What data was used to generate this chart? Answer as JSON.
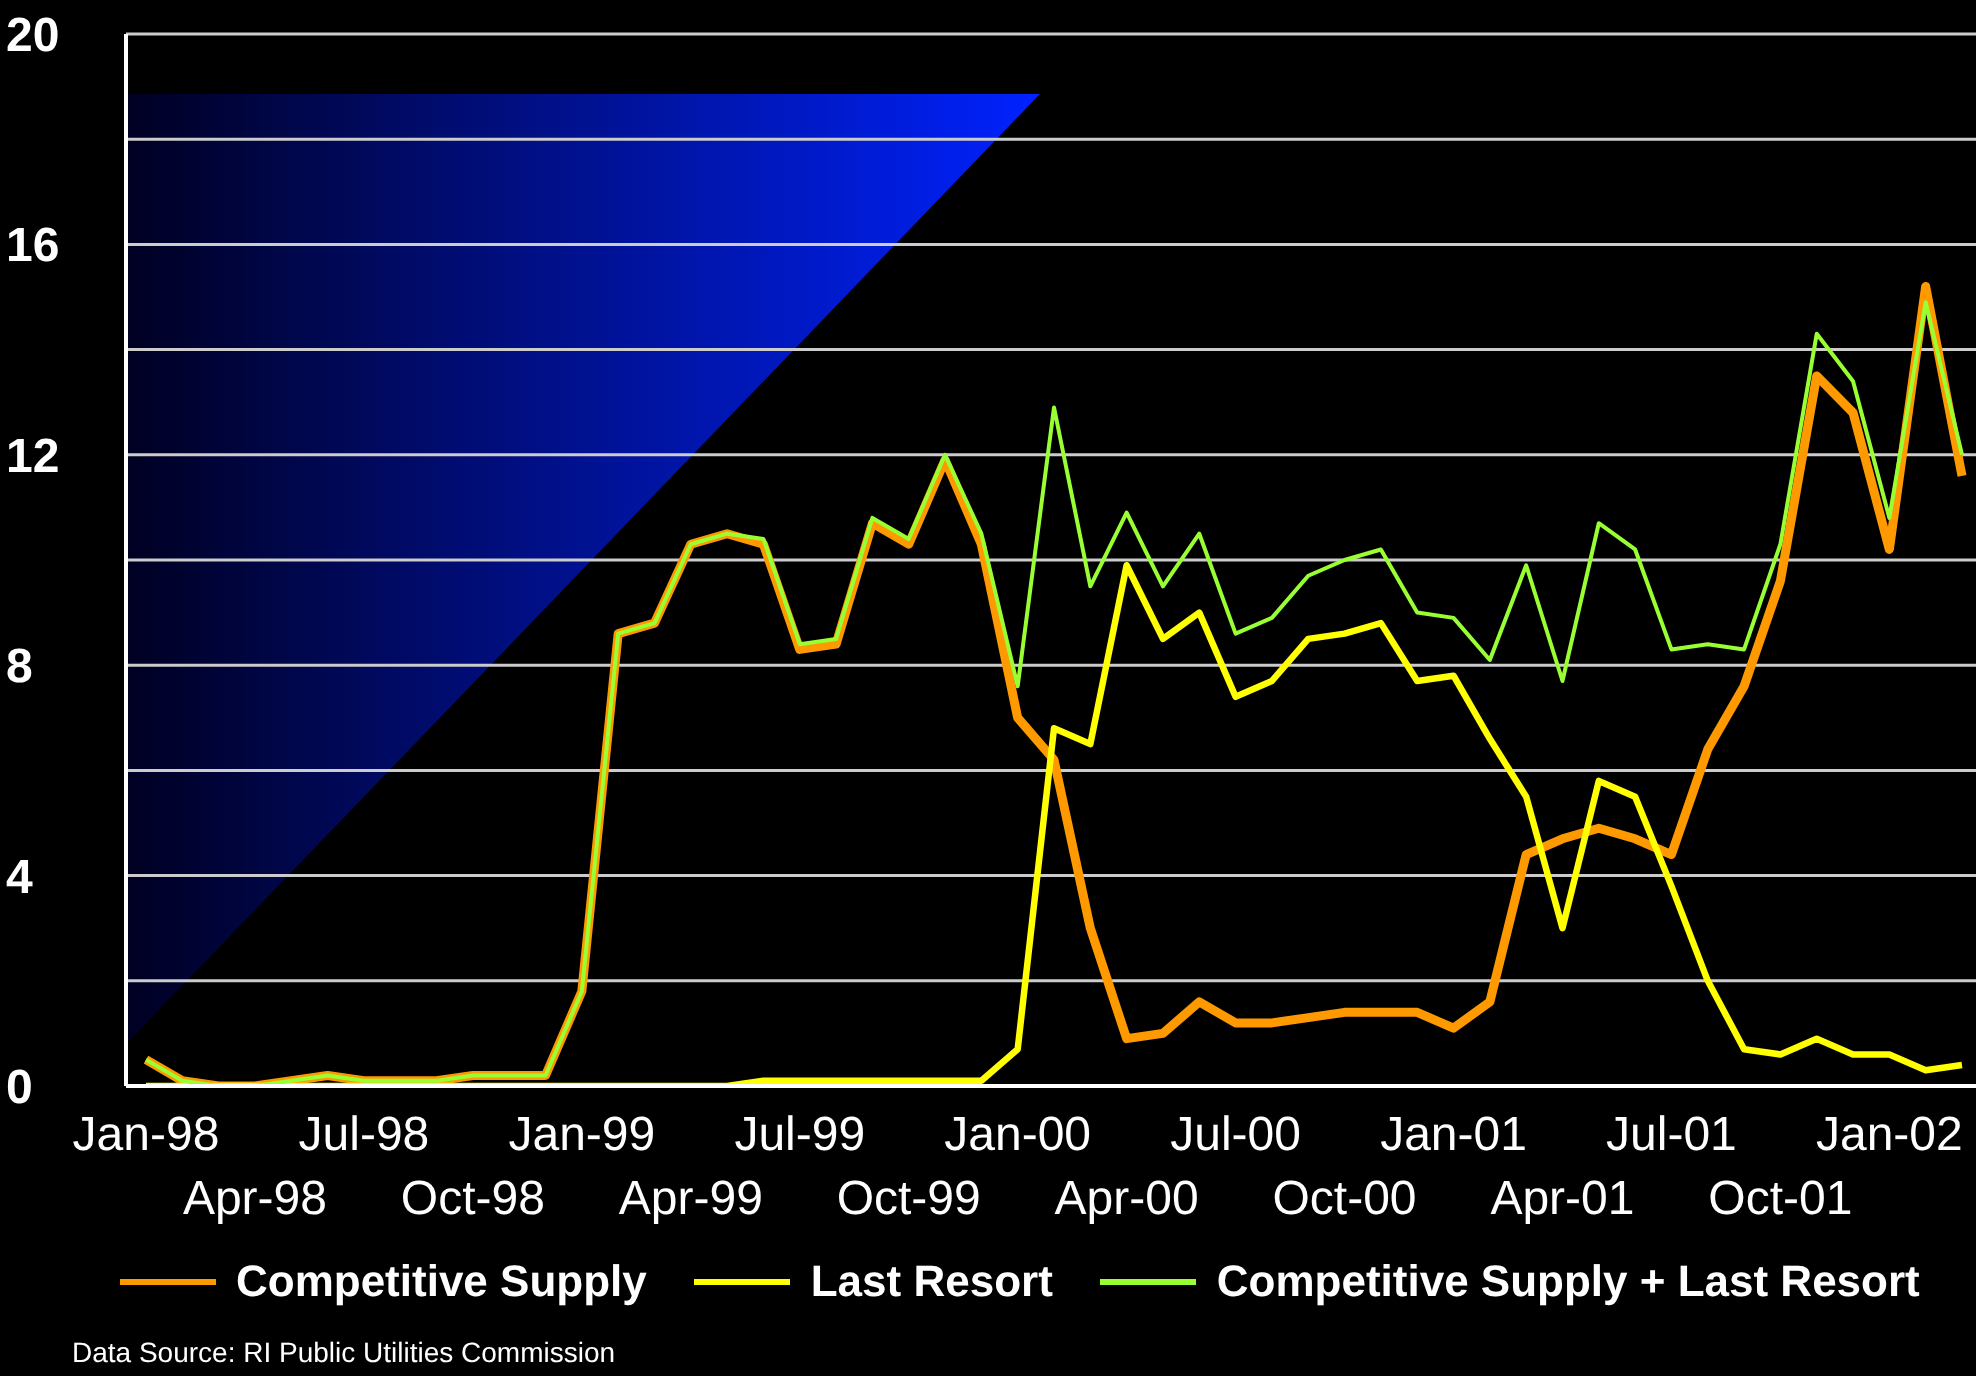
{
  "chart_data": {
    "type": "line",
    "categories": [
      "Jan-98",
      null,
      null,
      "Apr-98",
      null,
      null,
      "Jul-98",
      null,
      null,
      "Oct-98",
      null,
      null,
      "Jan-99",
      null,
      null,
      "Apr-99",
      null,
      null,
      "Jul-99",
      null,
      null,
      "Oct-99",
      null,
      null,
      "Jan-00",
      null,
      null,
      "Apr-00",
      null,
      null,
      "Jul-00",
      null,
      null,
      "Oct-00",
      null,
      null,
      "Jan-01",
      null,
      null,
      "Apr-01",
      null,
      null,
      "Jul-01",
      null,
      null,
      "Oct-01",
      null,
      null,
      "Jan-02",
      null,
      null
    ],
    "series": [
      {
        "name": "Competitive Supply",
        "color": "#ff9900",
        "values": [
          0.5,
          0.1,
          0,
          0,
          0.1,
          0.2,
          0.1,
          0.1,
          0.1,
          0.2,
          0.2,
          0.2,
          1.8,
          8.6,
          8.8,
          10.3,
          10.5,
          10.3,
          8.3,
          8.4,
          10.7,
          10.3,
          11.9,
          10.3,
          7.0,
          6.2,
          3.0,
          0.9,
          1.0,
          1.6,
          1.2,
          1.2,
          1.3,
          1.4,
          1.4,
          1.4,
          1.1,
          1.6,
          4.4,
          4.7,
          4.9,
          4.7,
          4.4,
          6.4,
          7.6,
          9.6,
          13.5,
          12.8,
          10.2,
          15.2,
          11.6
        ]
      },
      {
        "name": "Last Resort",
        "color": "#ffff00",
        "values": [
          0,
          0,
          0,
          0,
          0,
          0,
          0,
          0,
          0,
          0,
          0,
          0,
          0,
          0,
          0,
          0,
          0,
          0.1,
          0.1,
          0.1,
          0.1,
          0.1,
          0.1,
          0.1,
          0.7,
          6.8,
          6.5,
          9.9,
          8.5,
          9.0,
          7.4,
          7.7,
          8.5,
          8.6,
          8.8,
          7.7,
          7.8,
          6.6,
          5.5,
          3.0,
          5.8,
          5.5,
          3.8,
          2.0,
          0.7,
          0.6,
          0.9,
          0.6,
          0.6,
          0.3,
          0.4
        ]
      },
      {
        "name": "Competitive Supply + Last Resort",
        "color": "#99ff33",
        "values": [
          0.5,
          0.1,
          0,
          0,
          0.1,
          0.2,
          0.1,
          0.1,
          0.1,
          0.2,
          0.2,
          0.2,
          1.8,
          8.6,
          8.8,
          10.3,
          10.5,
          10.4,
          8.4,
          8.5,
          10.8,
          10.4,
          12.0,
          10.5,
          7.6,
          12.9,
          9.5,
          10.9,
          9.5,
          10.5,
          8.6,
          8.9,
          9.7,
          10.0,
          10.2,
          9.0,
          8.9,
          8.1,
          9.9,
          7.7,
          10.7,
          10.2,
          8.3,
          8.4,
          8.3,
          10.3,
          14.3,
          13.4,
          10.8,
          14.9,
          12.0
        ]
      }
    ],
    "ylim": [
      0,
      20
    ],
    "yticks": [
      0,
      {
        "value": 2,
        "label": null
      },
      4,
      {
        "value": 6,
        "label": null
      },
      8,
      {
        "value": 10,
        "label": null
      },
      12,
      {
        "value": 14,
        "label": null
      },
      16,
      {
        "value": 18,
        "label": null
      },
      20
    ],
    "grid": "y",
    "legend": "bottom",
    "marker": "none",
    "line_style": "solid",
    "annotations": [
      "Data Source: RI Public Utilities Commission"
    ]
  }
}
